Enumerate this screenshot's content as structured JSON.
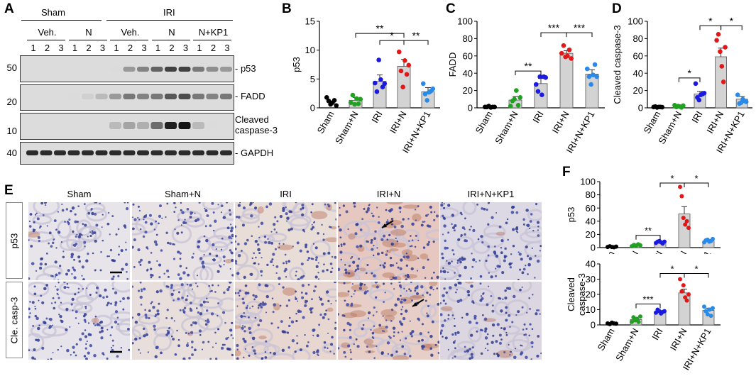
{
  "panels": {
    "A": "A",
    "B": "B",
    "C": "C",
    "D": "D",
    "E": "E",
    "F": "F"
  },
  "western_blot": {
    "groups": {
      "sham": "Sham",
      "iri": "IRI"
    },
    "subgroups": [
      "Veh.",
      "N",
      "Veh.",
      "N",
      "N+KP1"
    ],
    "lanes": [
      "1",
      "2",
      "3",
      "1",
      "2",
      "3",
      "1",
      "2",
      "3",
      "1",
      "2",
      "3",
      "1",
      "2",
      "3"
    ],
    "markers": [
      "50",
      "20",
      "10",
      "40"
    ],
    "bands": [
      "p53",
      "FADD",
      "Cleaved\ncaspase-3",
      "GAPDH"
    ]
  },
  "histology": {
    "columns": [
      "Sham",
      "Sham+N",
      "IRI",
      "IRI+N",
      "IRI+N+KP1"
    ],
    "rows": [
      "p53",
      "Cle. casp-3"
    ]
  },
  "chart_data": [
    {
      "panel": "B",
      "type": "bar",
      "categories": [
        "Sham",
        "Sham+N",
        "IRI",
        "IRI+N",
        "IRI+N+KP1"
      ],
      "values": [
        0,
        1.3,
        4.6,
        7.2,
        2.8
      ],
      "errors": [
        0,
        0.5,
        1.1,
        1.2,
        0.7
      ],
      "points": [
        [
          1.8,
          1.2,
          0.6,
          0.9,
          1.3,
          0.4
        ],
        [
          0.9,
          2.2,
          0.6,
          1.6,
          0.7,
          1.5
        ],
        [
          4.3,
          2.8,
          8.3,
          4.9,
          3.6,
          4.2
        ],
        [
          9.7,
          6.4,
          3.6,
          8.2,
          5.8,
          7.4
        ],
        [
          4.2,
          2.4,
          1.3,
          2.7,
          2.9,
          3.3
        ]
      ],
      "colors": [
        "#000000",
        "#22a022",
        "#1a1ae0",
        "#e01818",
        "#2a8ae8"
      ],
      "ylabel": "p53",
      "ylim": [
        0,
        15
      ],
      "yticks": [
        0,
        5,
        10,
        15
      ],
      "significance": [
        {
          "from": 1,
          "to": 3,
          "label": "**"
        },
        {
          "from": 2,
          "to": 3,
          "label": "*"
        },
        {
          "from": 3,
          "to": 4,
          "label": "**"
        }
      ]
    },
    {
      "panel": "C",
      "type": "bar",
      "categories": [
        "Sham",
        "Sham+N",
        "IRI",
        "IRI+N",
        "IRI+N+KP1"
      ],
      "values": [
        1,
        9,
        28,
        63,
        39
      ],
      "errors": [
        0.5,
        4,
        6,
        3,
        5
      ],
      "points": [
        [
          1,
          1,
          2,
          0.5,
          1,
          1
        ],
        [
          2,
          8,
          10,
          20,
          3,
          12
        ],
        [
          27,
          19,
          36,
          15,
          36,
          35
        ],
        [
          63,
          72,
          59,
          60,
          67,
          57
        ],
        [
          45,
          36,
          27,
          38,
          50,
          36
        ]
      ],
      "colors": [
        "#000000",
        "#22a022",
        "#1a1ae0",
        "#e01818",
        "#2a8ae8"
      ],
      "ylabel": "FADD",
      "ylim": [
        0,
        100
      ],
      "yticks": [
        0,
        20,
        40,
        60,
        80,
        100
      ],
      "significance": [
        {
          "from": 1,
          "to": 2,
          "label": "**"
        },
        {
          "from": 2,
          "to": 3,
          "label": "***"
        },
        {
          "from": 3,
          "to": 4,
          "label": "***"
        }
      ]
    },
    {
      "panel": "D",
      "type": "bar",
      "categories": [
        "Sham",
        "Sham+N",
        "IRI",
        "IRI+N",
        "IRI+N+KP1"
      ],
      "values": [
        1,
        2,
        16,
        59,
        10
      ],
      "errors": [
        0.5,
        1,
        3,
        10,
        3
      ],
      "points": [
        [
          1,
          1.5,
          0.5,
          1,
          1,
          0.8
        ],
        [
          3,
          1,
          2,
          1.5,
          0.5,
          2.5
        ],
        [
          28,
          12,
          9,
          15,
          16,
          17
        ],
        [
          78,
          85,
          65,
          48,
          30,
          70
        ],
        [
          15,
          5,
          6,
          10,
          8,
          7
        ]
      ],
      "colors": [
        "#000000",
        "#22a022",
        "#1a1ae0",
        "#e01818",
        "#2a8ae8"
      ],
      "ylabel": "Cleaved caspase-3",
      "ylim": [
        0,
        100
      ],
      "yticks": [
        0,
        20,
        40,
        60,
        80,
        100
      ],
      "significance": [
        {
          "from": 1,
          "to": 2,
          "label": "*"
        },
        {
          "from": 2,
          "to": 3,
          "label": "*"
        },
        {
          "from": 3,
          "to": 4,
          "label": "*"
        }
      ]
    },
    {
      "panel": "F-top",
      "type": "bar",
      "categories": [
        "Sham",
        "Sham+N",
        "IRI",
        "IRI+N",
        "IRI+N+KP1"
      ],
      "values": [
        1,
        3,
        8,
        51,
        10
      ],
      "errors": [
        0.5,
        1,
        1.2,
        11,
        2
      ],
      "points": [
        [
          1,
          2,
          1,
          0.5,
          1.5
        ],
        [
          2,
          4,
          3,
          5,
          3.5
        ],
        [
          7,
          9,
          10,
          8,
          6,
          9
        ],
        [
          92,
          78,
          45,
          35,
          40,
          30
        ],
        [
          8,
          11,
          12,
          9,
          10,
          13
        ]
      ],
      "colors": [
        "#000000",
        "#22a022",
        "#1a1ae0",
        "#e01818",
        "#2a8ae8"
      ],
      "ylabel": "p53",
      "ylim": [
        0,
        100
      ],
      "yticks": [
        0,
        20,
        40,
        60,
        80,
        100
      ],
      "significance": [
        {
          "from": 1,
          "to": 2,
          "label": "**"
        },
        {
          "from": 2,
          "to": 3,
          "label": "*"
        },
        {
          "from": 3,
          "to": 4,
          "label": "*"
        }
      ]
    },
    {
      "panel": "F-bottom",
      "type": "bar",
      "categories": [
        "Sham",
        "Sham+N",
        "IRI",
        "IRI+N",
        "IRI+N+KP1"
      ],
      "values": [
        1,
        3.5,
        8.5,
        21,
        9.5
      ],
      "errors": [
        0.5,
        1,
        0.5,
        2.5,
        1.5
      ],
      "points": [
        [
          1,
          0.5,
          1.5,
          1,
          0.8
        ],
        [
          2,
          5,
          3,
          4,
          2,
          5.5
        ],
        [
          8,
          10,
          9,
          7.5,
          8.5,
          9
        ],
        [
          30,
          22,
          26,
          18,
          16,
          20
        ],
        [
          12,
          9,
          7,
          10,
          6,
          11
        ]
      ],
      "colors": [
        "#000000",
        "#22a022",
        "#1a1ae0",
        "#e01818",
        "#2a8ae8"
      ],
      "ylabel": "Cleaved\ncaspase-3",
      "ylim": [
        0,
        40
      ],
      "yticks": [
        0,
        10,
        20,
        30,
        40
      ],
      "significance": [
        {
          "from": 1,
          "to": 2,
          "label": "***"
        },
        {
          "from": 2,
          "to": 3,
          "label": "*"
        },
        {
          "from": 3,
          "to": 4,
          "label": "*"
        }
      ]
    }
  ]
}
